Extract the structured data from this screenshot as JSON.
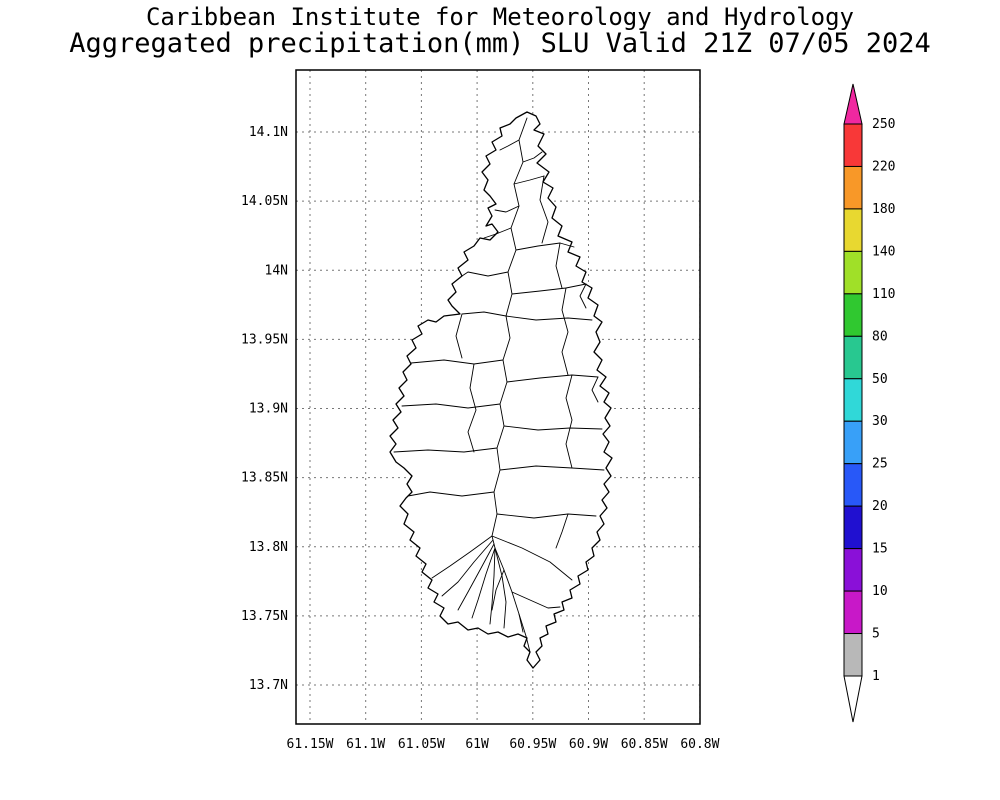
{
  "header": {
    "title_line1": "Caribbean Institute for Meteorology and Hydrology",
    "title_line2": "Aggregated precipitation(mm) SLU Valid 21Z 07/05 2024"
  },
  "map": {
    "region_code": "SLU",
    "units": "mm",
    "valid_time": "21Z 07/05 2024",
    "lat_ticks": [
      "14.1N",
      "14.05N",
      "14N",
      "13.95N",
      "13.9N",
      "13.85N",
      "13.8N",
      "13.75N",
      "13.7N"
    ],
    "lon_ticks": [
      "61.15W",
      "61.1W",
      "61.05W",
      "61W",
      "60.95W",
      "60.9W",
      "60.85W",
      "60.8W"
    ]
  },
  "colorbar": {
    "tick_labels": [
      "250",
      "220",
      "180",
      "140",
      "110",
      "80",
      "50",
      "30",
      "25",
      "20",
      "15",
      "10",
      "5",
      "1"
    ],
    "segment_colors_top_to_bottom": [
      "#f83838",
      "#f89828",
      "#e8d830",
      "#a0e028",
      "#30c830",
      "#28c890",
      "#30d8d8",
      "#38a0f8",
      "#2858f8",
      "#2010d0",
      "#8a10d8",
      "#c818c8",
      "#b8b8b8"
    ],
    "above_max_color": "#f028a0",
    "below_min_color": "#ffffff",
    "outline_color": "#000000"
  },
  "chart_data": {
    "type": "map",
    "title": "Aggregated precipitation(mm) SLU Valid 21Z 07/05 2024",
    "organization": "Caribbean Institute for Meteorology and Hydrology",
    "region": "SLU",
    "units": "mm",
    "valid_time": "21Z 07/05 2024",
    "lat_tick_values": [
      "14.1N",
      "14.05N",
      "14N",
      "13.95N",
      "13.9N",
      "13.85N",
      "13.8N",
      "13.75N",
      "13.7N"
    ],
    "lon_tick_values": [
      "61.15W",
      "61.1W",
      "61.05W",
      "61W",
      "60.95W",
      "60.9W",
      "60.85W",
      "60.8W"
    ],
    "scale_values_mm": [
      1,
      5,
      10,
      15,
      20,
      25,
      30,
      50,
      80,
      110,
      140,
      180,
      220,
      250
    ],
    "scale_colors_low_to_high": [
      "#b8b8b8",
      "#c818c8",
      "#8a10d8",
      "#2010d0",
      "#2858f8",
      "#38a0f8",
      "#30d8d8",
      "#28c890",
      "#30c830",
      "#a0e028",
      "#e8d830",
      "#f89828",
      "#f83838"
    ],
    "grid": "dotted",
    "legend_position": "right",
    "shaded_precip_visible_on_island": false
  }
}
